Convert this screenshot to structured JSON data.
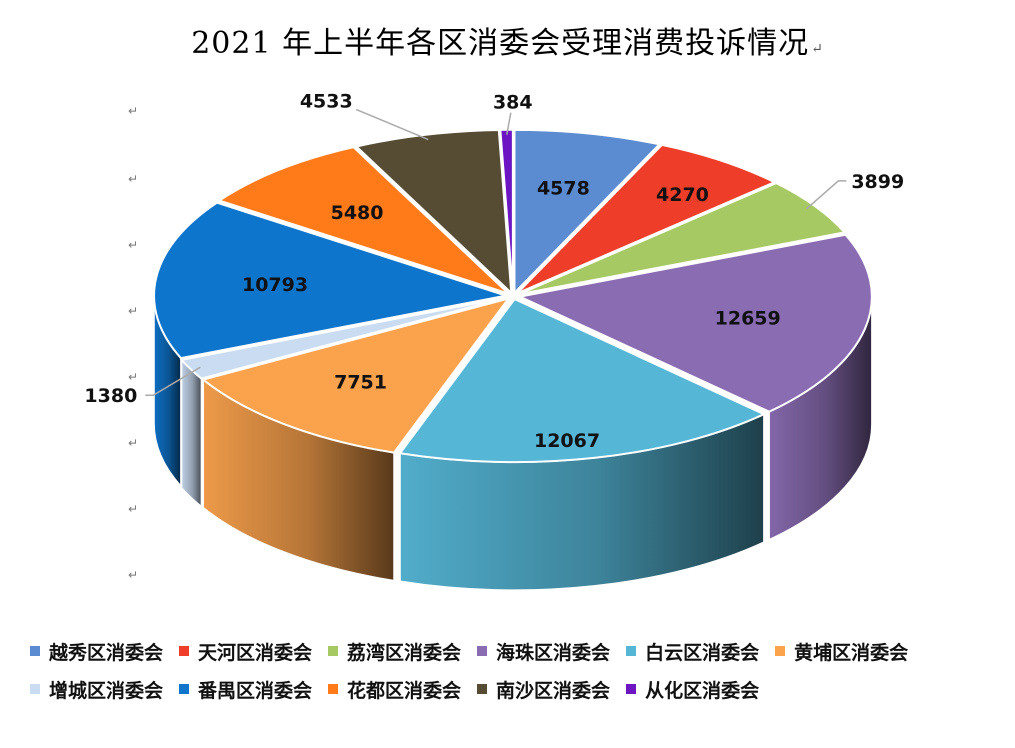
{
  "title": "2021 年上半年各区消委会受理消费投诉情况",
  "title_mark": "↵",
  "para_mark": "↵",
  "chart_data": {
    "type": "pie",
    "title": "2021 年上半年各区消委会受理消费投诉情况",
    "style": "3d-exploded",
    "legend_position": "bottom",
    "categories": [
      "越秀区消委会",
      "天河区消委会",
      "荔湾区消委会",
      "海珠区消委会",
      "白云区消委会",
      "黄埔区消委会",
      "增城区消委会",
      "番禺区消委会",
      "花都区消委会",
      "南沙区消委会",
      "从化区消委会"
    ],
    "values": [
      4578,
      4270,
      3899,
      12659,
      12067,
      7751,
      1380,
      10793,
      5480,
      4533,
      384
    ],
    "data_labels": [
      "4578",
      "4270",
      "3899",
      "12659",
      "12067",
      "7751",
      "1380",
      "10793",
      "5480",
      "4533",
      "384"
    ],
    "colors": [
      "#5b8bd0",
      "#ee3e2a",
      "#a6c964",
      "#8a6cb2",
      "#55b6d6",
      "#fba24d",
      "#c9dcf2",
      "#0e75cc",
      "#ff7a19",
      "#554c33",
      "#6b16c2"
    ]
  }
}
